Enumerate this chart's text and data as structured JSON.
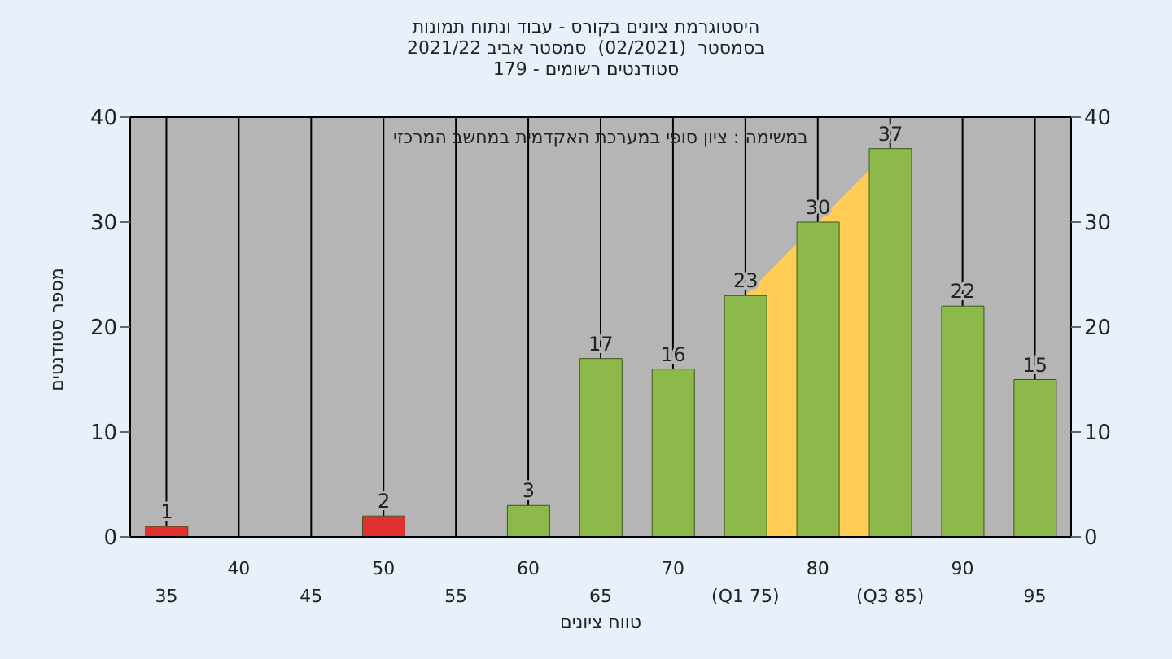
{
  "chart_data": {
    "type": "bar",
    "title": "היסטוגרמת ציונים בקורס - עבוד ונתוח תמונות\nבסמסטר  (02/2021)  סמסטר אביב 2021/22\nסטודנטים רשומים - 179",
    "xlabel": "טווח ציונים",
    "ylabel": "מספר סטודנטים",
    "annotations": [
      "במשימה : ציון סופי במערכת האקדמית במחשב המרכזי"
    ],
    "categories": [
      "35",
      "40",
      "45",
      "50",
      "55",
      "60",
      "65",
      "70",
      "(Q1 75)",
      "80",
      "(Q3 85)",
      "90",
      "95"
    ],
    "series": [
      {
        "type": "area",
        "color": "#ffcc55",
        "values": [
          null,
          null,
          null,
          null,
          null,
          null,
          null,
          null,
          23,
          30,
          37,
          null,
          null
        ]
      },
      {
        "colors": [
          "#e03030",
          null,
          null,
          "#e03030",
          null,
          "#8db84a",
          "#8db84a",
          "#8db84a",
          "#8db84a",
          "#8db84a",
          "#8db84a",
          "#8db84a",
          "#8db84a"
        ],
        "values": [
          1,
          null,
          null,
          2,
          null,
          3,
          17,
          16,
          23,
          30,
          37,
          22,
          15
        ],
        "data_labels": true
      }
    ],
    "ylim": [
      0,
      40
    ],
    "yticks": [
      0,
      10,
      20,
      30,
      40
    ],
    "y2lim": [
      0,
      40
    ],
    "y2ticks": [
      0,
      10,
      20,
      30,
      40
    ],
    "grid": true
  }
}
